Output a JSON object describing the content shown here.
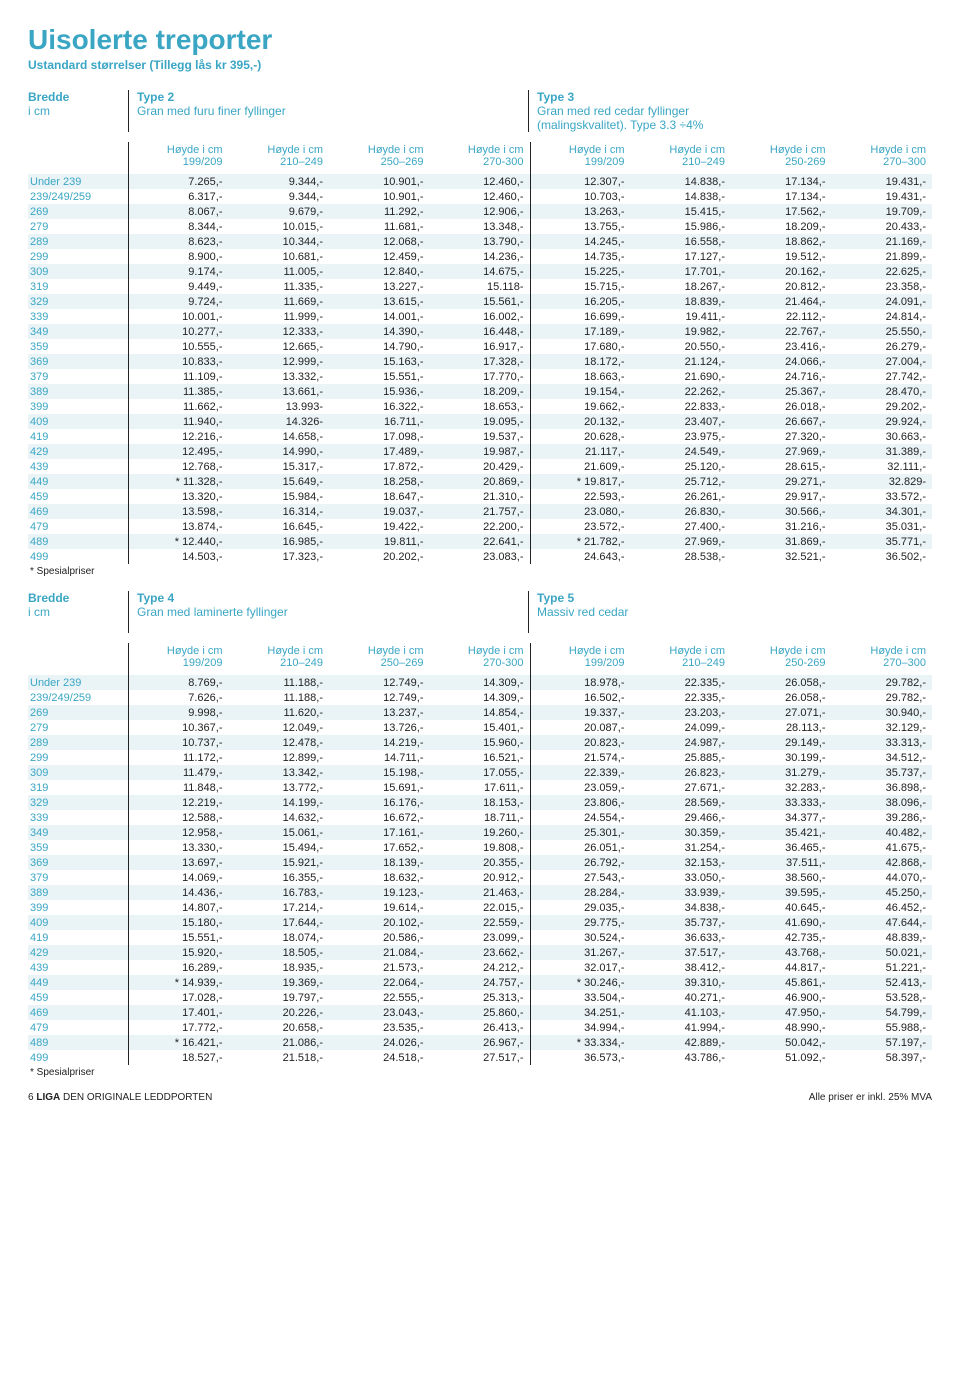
{
  "colors": {
    "accent": "#3aa6c4",
    "row_alt_bg": "#eaf4f7",
    "text": "#222222"
  },
  "title": "Uisolerte treporter",
  "subtitle": "Ustandard størrelser  (Tillegg lås kr 395,-)",
  "bredde_label": "Bredde",
  "bredde_unit": "i cm",
  "col_header_line1": "Høyde i cm",
  "col_header_ranges": [
    "199/209",
    "210–249",
    "250–269",
    "270-300",
    "199/209",
    "210–249",
    "250-269",
    "270–300"
  ],
  "section1": {
    "type_left": {
      "name": "Type 2",
      "desc": "Gran med furu finer fyllinger"
    },
    "type_right": {
      "name": "Type 3",
      "desc1": "Gran med red cedar fyllinger",
      "desc2": "(malingskvalitet). Type 3.3 ÷4%"
    },
    "rows": [
      {
        "h": "Under 239",
        "v": [
          "7.265,-",
          "9.344,-",
          "10.901,-",
          "12.460,-",
          "12.307,-",
          "14.838,-",
          "17.134,-",
          "19.431,-"
        ]
      },
      {
        "h": "239/249/259",
        "v": [
          "6.317,-",
          "9.344,-",
          "10.901,-",
          "12.460,-",
          "10.703,-",
          "14.838,-",
          "17.134,-",
          "19.431,-"
        ]
      },
      {
        "h": "269",
        "v": [
          "8.067,-",
          "9.679,-",
          "11.292,-",
          "12.906,-",
          "13.263,-",
          "15.415,-",
          "17.562,-",
          "19.709,-"
        ]
      },
      {
        "h": "279",
        "v": [
          "8.344,-",
          "10.015,-",
          "11.681,-",
          "13.348,-",
          "13.755,-",
          "15.986,-",
          "18.209,-",
          "20.433,-"
        ]
      },
      {
        "h": "289",
        "v": [
          "8.623,-",
          "10.344,-",
          "12.068,-",
          "13.790,-",
          "14.245,-",
          "16.558,-",
          "18.862,-",
          "21.169,-"
        ]
      },
      {
        "h": "299",
        "v": [
          "8.900,-",
          "10.681,-",
          "12.459,-",
          "14.236,-",
          "14.735,-",
          "17.127,-",
          "19.512,-",
          "21.899,-"
        ]
      },
      {
        "h": "309",
        "v": [
          "9.174,-",
          "11.005,-",
          "12.840,-",
          "14.675,-",
          "15.225,-",
          "17.701,-",
          "20.162,-",
          "22.625,-"
        ]
      },
      {
        "h": "319",
        "v": [
          "9.449,-",
          "11.335,-",
          "13.227,-",
          "15.118-",
          "15.715,-",
          "18.267,-",
          "20.812,-",
          "23.358,-"
        ]
      },
      {
        "h": "329",
        "v": [
          "9.724,-",
          "11.669,-",
          "13.615,-",
          "15.561,-",
          "16.205,-",
          "18.839,-",
          "21.464,-",
          "24.091,-"
        ]
      },
      {
        "h": "339",
        "v": [
          "10.001,-",
          "11.999,-",
          "14.001,-",
          "16.002,-",
          "16.699,-",
          "19.411,-",
          "22.112,-",
          "24.814,-"
        ]
      },
      {
        "h": "349",
        "v": [
          "10.277,-",
          "12.333,-",
          "14.390,-",
          "16.448,-",
          "17.189,-",
          "19.982,-",
          "22.767,-",
          "25.550,-"
        ]
      },
      {
        "h": "359",
        "v": [
          "10.555,-",
          "12.665,-",
          "14.790,-",
          "16.917,-",
          "17.680,-",
          "20.550,-",
          "23.416,-",
          "26.279,-"
        ]
      },
      {
        "h": "369",
        "v": [
          "10.833,-",
          "12.999,-",
          "15.163,-",
          "17.328,-",
          "18.172,-",
          "21.124,-",
          "24.066,-",
          "27.004,-"
        ]
      },
      {
        "h": "379",
        "v": [
          "11.109,-",
          "13.332,-",
          "15.551,-",
          "17.770,-",
          "18.663,-",
          "21.690,-",
          "24.716,-",
          "27.742,-"
        ]
      },
      {
        "h": "389",
        "v": [
          "11.385,-",
          "13.661,-",
          "15.936,-",
          "18.209,-",
          "19.154,-",
          "22.262,-",
          "25.367,-",
          "28.470,-"
        ]
      },
      {
        "h": "399",
        "v": [
          "11.662,-",
          "13.993-",
          "16.322,-",
          "18.653,-",
          "19.662,-",
          "22.833,-",
          "26.018,-",
          "29.202,-"
        ]
      },
      {
        "h": "409",
        "v": [
          "11.940,-",
          "14.326-",
          "16.711,-",
          "19.095,-",
          "20.132,-",
          "23.407,-",
          "26.667,-",
          "29.924,-"
        ]
      },
      {
        "h": "419",
        "v": [
          "12.216,-",
          "14.658,-",
          "17.098,-",
          "19.537,-",
          "20.628,-",
          "23.975,-",
          "27.320,-",
          "30.663,-"
        ]
      },
      {
        "h": "429",
        "v": [
          "12.495,-",
          "14.990,-",
          "17.489,-",
          "19.987,-",
          "21.117,-",
          "24.549,-",
          "27.969,-",
          "31.389,-"
        ]
      },
      {
        "h": "439",
        "v": [
          "12.768,-",
          "15.317,-",
          "17.872,-",
          "20.429,-",
          "21.609,-",
          "25.120,-",
          "28.615,-",
          "32.111,-"
        ]
      },
      {
        "h": "449",
        "v": [
          "* 11.328,-",
          "15.649,-",
          "18.258,-",
          "20.869,-",
          "* 19.817,-",
          "25.712,-",
          "29.271,-",
          "32.829-"
        ]
      },
      {
        "h": "459",
        "v": [
          "13.320,-",
          "15.984,-",
          "18.647,-",
          "21.310,-",
          "22.593,-",
          "26.261,-",
          "29.917,-",
          "33.572,-"
        ]
      },
      {
        "h": "469",
        "v": [
          "13.598,-",
          "16.314,-",
          "19.037,-",
          "21.757,-",
          "23.080,-",
          "26.830,-",
          "30.566,-",
          "34.301,-"
        ]
      },
      {
        "h": "479",
        "v": [
          "13.874,-",
          "16.645,-",
          "19.422,-",
          "22.200,-",
          "23.572,-",
          "27.400,-",
          "31.216,-",
          "35.031,-"
        ]
      },
      {
        "h": "489",
        "v": [
          "* 12.440,-",
          "16.985,-",
          "19.811,-",
          "22.641,-",
          "* 21.782,-",
          "27.969,-",
          "31.869,-",
          "35.771,-"
        ]
      },
      {
        "h": "499",
        "v": [
          "14.503,-",
          "17.323,-",
          "20.202,-",
          "23.083,-",
          "24.643,-",
          "28.538,-",
          "32.521,-",
          "36.502,-"
        ]
      }
    ]
  },
  "section2": {
    "type_left": {
      "name": "Type 4",
      "desc": "Gran med laminerte fyllinger"
    },
    "type_right": {
      "name": "Type 5",
      "desc1": "Massiv red cedar",
      "desc2": ""
    },
    "rows": [
      {
        "h": "Under 239",
        "v": [
          "8.769,-",
          "11.188,-",
          "12.749,-",
          "14.309,-",
          "18.978,-",
          "22.335,-",
          "26.058,-",
          "29.782,-"
        ]
      },
      {
        "h": "239/249/259",
        "v": [
          "7.626,-",
          "11.188,-",
          "12.749,-",
          "14.309,-",
          "16.502,-",
          "22.335,-",
          "26.058,-",
          "29.782,-"
        ]
      },
      {
        "h": "269",
        "v": [
          "9.998,-",
          "11.620,-",
          "13.237,-",
          "14.854,-",
          "19.337,-",
          "23.203,-",
          "27.071,-",
          "30.940,-"
        ]
      },
      {
        "h": "279",
        "v": [
          "10.367,-",
          "12.049,-",
          "13.726,-",
          "15.401,-",
          "20.087,-",
          "24.099,-",
          "28.113,-",
          "32.129,-"
        ]
      },
      {
        "h": "289",
        "v": [
          "10.737,-",
          "12.478,-",
          "14.219,-",
          "15.960,-",
          "20.823,-",
          "24.987,-",
          "29.149,-",
          "33.313,-"
        ]
      },
      {
        "h": "299",
        "v": [
          "11.172,-",
          "12.899,-",
          "14.711,-",
          "16.521,-",
          "21.574,-",
          "25.885,-",
          "30.199,-",
          "34.512,-"
        ]
      },
      {
        "h": "309",
        "v": [
          "11.479,-",
          "13.342,-",
          "15.198,-",
          "17.055,-",
          "22.339,-",
          "26.823,-",
          "31.279,-",
          "35.737,-"
        ]
      },
      {
        "h": "319",
        "v": [
          "11.848,-",
          "13.772,-",
          "15.691,-",
          "17.611,-",
          "23.059,-",
          "27.671,-",
          "32.283,-",
          "36.898,-"
        ]
      },
      {
        "h": "329",
        "v": [
          "12.219,-",
          "14.199,-",
          "16.176,-",
          "18.153,-",
          "23.806,-",
          "28.569,-",
          "33.333,-",
          "38.096,-"
        ]
      },
      {
        "h": "339",
        "v": [
          "12.588,-",
          "14.632,-",
          "16.672,-",
          "18.711,-",
          "24.554,-",
          "29.466,-",
          "34.377,-",
          "39.286,-"
        ]
      },
      {
        "h": "349",
        "v": [
          "12.958,-",
          "15.061,-",
          "17.161,-",
          "19.260,-",
          "25.301,-",
          "30.359,-",
          "35.421,-",
          "40.482,-"
        ]
      },
      {
        "h": "359",
        "v": [
          "13.330,-",
          "15.494,-",
          "17.652,-",
          "19.808,-",
          "26.051,-",
          "31.254,-",
          "36.465,-",
          "41.675,-"
        ]
      },
      {
        "h": "369",
        "v": [
          "13.697,-",
          "15.921,-",
          "18.139,-",
          "20.355,-",
          "26.792,-",
          "32.153,-",
          "37.511,-",
          "42.868,-"
        ]
      },
      {
        "h": "379",
        "v": [
          "14.069,-",
          "16.355,-",
          "18.632,-",
          "20.912,-",
          "27.543,-",
          "33.050,-",
          "38.560,-",
          "44.070,-"
        ]
      },
      {
        "h": "389",
        "v": [
          "14.436,-",
          "16.783,-",
          "19.123,-",
          "21.463,-",
          "28.284,-",
          "33.939,-",
          "39.595,-",
          "45.250,-"
        ]
      },
      {
        "h": "399",
        "v": [
          "14.807,-",
          "17.214,-",
          "19.614,-",
          "22.015,-",
          "29.035,-",
          "34.838,-",
          "40.645,-",
          "46.452,-"
        ]
      },
      {
        "h": "409",
        "v": [
          "15.180,-",
          "17.644,-",
          "20.102,-",
          "22.559,-",
          "29.775,-",
          "35.737,-",
          "41.690,-",
          "47.644,-"
        ]
      },
      {
        "h": "419",
        "v": [
          "15.551,-",
          "18.074,-",
          "20.586,-",
          "23.099,-",
          "30.524,-",
          "36.633,-",
          "42.735,-",
          "48.839,-"
        ]
      },
      {
        "h": "429",
        "v": [
          "15.920,-",
          "18.505,-",
          "21.084,-",
          "23.662,-",
          "31.267,-",
          "37.517,-",
          "43.768,-",
          "50.021,-"
        ]
      },
      {
        "h": "439",
        "v": [
          "16.289,-",
          "18.935,-",
          "21.573,-",
          "24.212,-",
          "32.017,-",
          "38.412,-",
          "44.817,-",
          "51.221,-"
        ]
      },
      {
        "h": "449",
        "v": [
          "* 14.939,-",
          "19.369,-",
          "22.064,-",
          "24.757,-",
          "* 30.246,-",
          "39.310,-",
          "45.861,-",
          "52.413,-"
        ]
      },
      {
        "h": "459",
        "v": [
          "17.028,-",
          "19.797,-",
          "22.555,-",
          "25.313,-",
          "33.504,-",
          "40.271,-",
          "46.900,-",
          "53.528,-"
        ]
      },
      {
        "h": "469",
        "v": [
          "17.401,-",
          "20.226,-",
          "23.043,-",
          "25.860,-",
          "34.251,-",
          "41.103,-",
          "47.950,-",
          "54.799,-"
        ]
      },
      {
        "h": "479",
        "v": [
          "17.772,-",
          "20.658,-",
          "23.535,-",
          "26.413,-",
          "34.994,-",
          "41.994,-",
          "48.990,-",
          "55.988,-"
        ]
      },
      {
        "h": "489",
        "v": [
          "* 16.421,-",
          "21.086,-",
          "24.026,-",
          "26.967,-",
          "* 33.334,-",
          "42.889,-",
          "50.042,-",
          "57.197,-"
        ]
      },
      {
        "h": "499",
        "v": [
          "18.527,-",
          "21.518,-",
          "24.518,-",
          "27.517,-",
          "36.573,-",
          "43.786,-",
          "51.092,-",
          "58.397,-"
        ]
      }
    ]
  },
  "footnote": "* Spesialpriser",
  "footer": {
    "page_num": "6",
    "brand": "LIGA",
    "tagline": "DEN ORIGINALE LEDDPORTEN",
    "right": "Alle priser er inkl. 25% MVA"
  }
}
